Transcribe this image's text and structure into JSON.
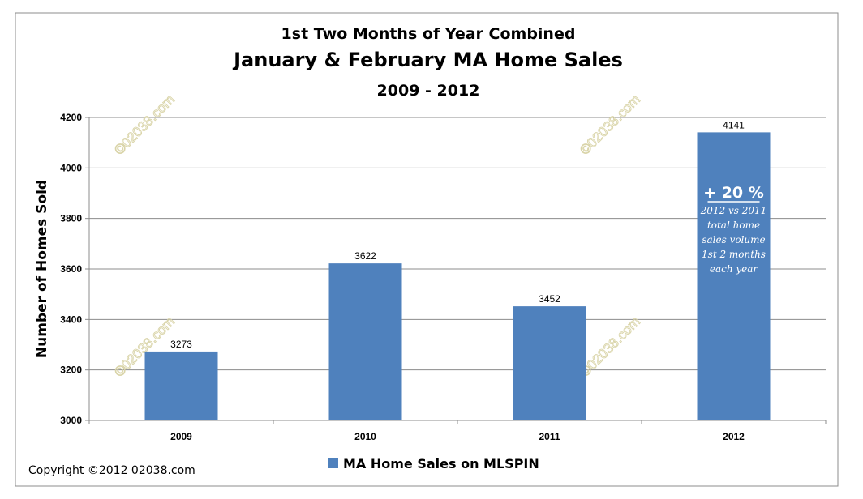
{
  "chart_data": {
    "type": "bar",
    "title": "1st Two Months of Year Combined",
    "subtitle": "January & February MA Home Sales",
    "subtitle2": "2009 - 2012",
    "xlabel": "",
    "ylabel": "Number of Homes Sold",
    "categories": [
      "2009",
      "2010",
      "2011",
      "2012"
    ],
    "series": [
      {
        "name": "MA Home Sales on MLSPIN",
        "values": [
          3273,
          3622,
          3452,
          4141
        ],
        "color": "#4f81bd"
      }
    ],
    "ylim": [
      3000,
      4200
    ],
    "yticks": [
      3000,
      3200,
      3400,
      3600,
      3800,
      4000,
      4200
    ],
    "grid": true,
    "legend_position": "bottom",
    "data_labels": [
      "3273",
      "3622",
      "3452",
      "4141"
    ],
    "annotation": {
      "category": "2012",
      "headline": "+ 20 %",
      "lines": [
        "2012 vs 2011",
        "total home",
        "sales volume",
        "1st 2 months",
        "each year"
      ]
    },
    "watermark": "©02038.com"
  },
  "footer": {
    "copyright": "Copyright  ©2012  02038.com"
  }
}
